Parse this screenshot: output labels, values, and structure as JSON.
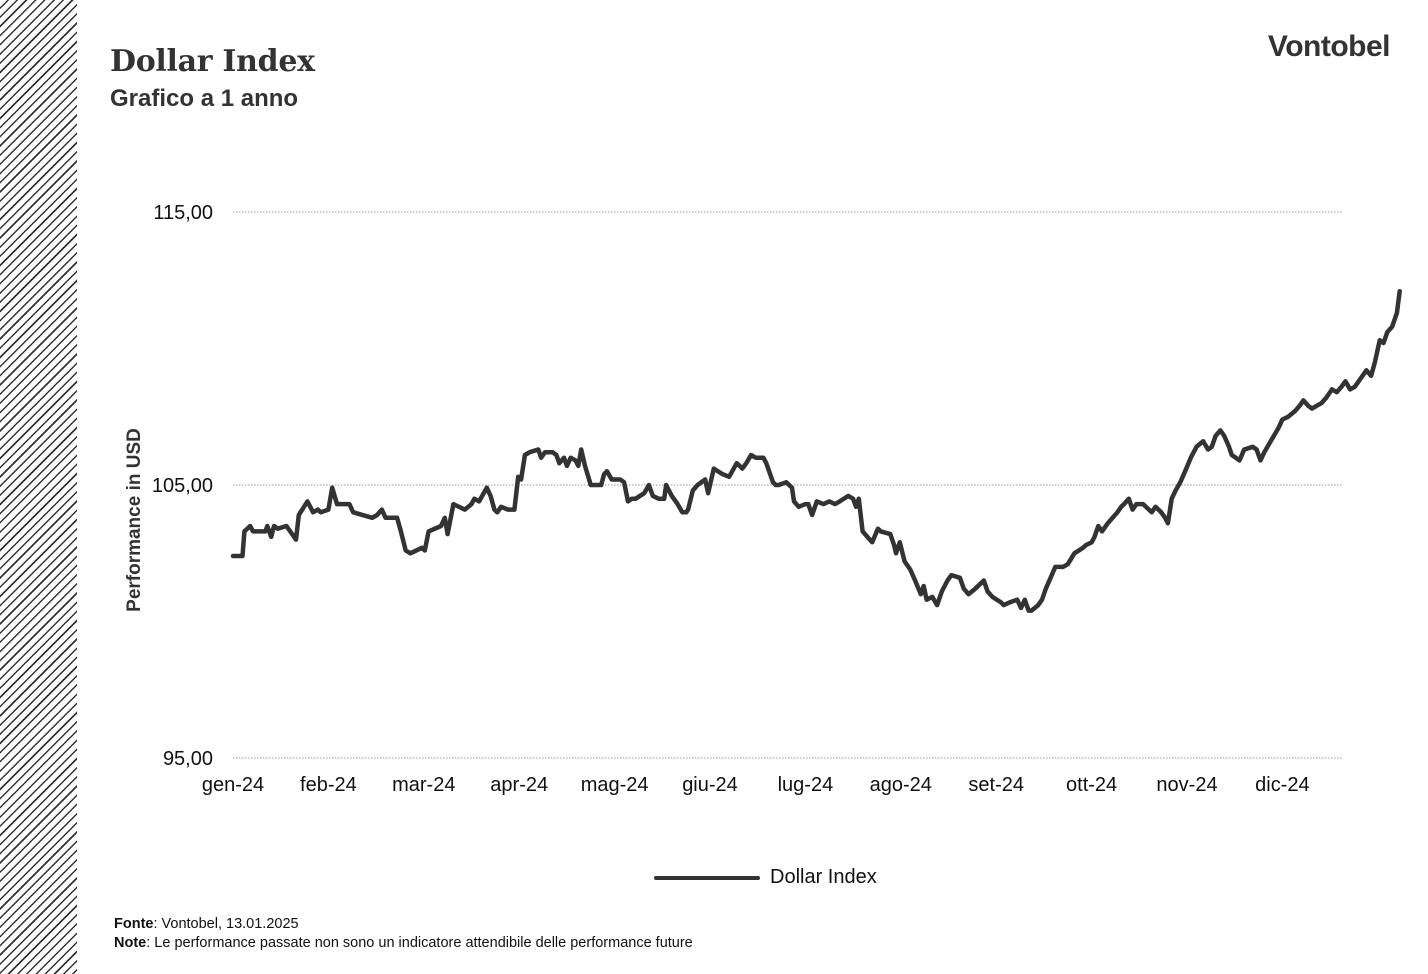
{
  "header": {
    "title": "Dollar Index",
    "subtitle": "Grafico a 1 anno",
    "brand": "Vontobel"
  },
  "footer": {
    "source_label": "Fonte",
    "source_text": ": Vontobel, 13.01.2025",
    "note_label": "Note",
    "note_text": ": Le performance passate non sono un indicatore attendibile delle performance future"
  },
  "colors": {
    "line": "#333333",
    "grid": "#9a9a9a",
    "text": "#111111"
  },
  "chart_data": {
    "type": "line",
    "title": "Dollar Index",
    "subtitle": "Grafico a 1 anno",
    "xlabel": "",
    "ylabel": "Performance in USD",
    "ylim": [
      95,
      115
    ],
    "yticks": [
      95,
      105,
      115
    ],
    "ytick_labels": [
      "95,00",
      "105,00",
      "115,00"
    ],
    "grid": true,
    "legend": "bottom-center",
    "xlim": [
      0,
      12.25
    ],
    "xticks": [
      0,
      1,
      2,
      3,
      4,
      5,
      6,
      7,
      8,
      9,
      10,
      11
    ],
    "xtick_labels": [
      "gen-24",
      "feb-24",
      "mar-24",
      "apr-24",
      "mag-24",
      "giu-24",
      "lug-24",
      "ago-24",
      "set-24",
      "ott-24",
      "nov-24",
      "dic-24"
    ],
    "series": [
      {
        "name": "Dollar Index",
        "points": [
          [
            0.0,
            102.4
          ],
          [
            0.1,
            102.4
          ],
          [
            0.12,
            103.3
          ],
          [
            0.18,
            103.5
          ],
          [
            0.21,
            103.3
          ],
          [
            0.34,
            103.3
          ],
          [
            0.36,
            103.5
          ],
          [
            0.4,
            103.1
          ],
          [
            0.43,
            103.5
          ],
          [
            0.47,
            103.4
          ],
          [
            0.56,
            103.5
          ],
          [
            0.66,
            103.0
          ],
          [
            0.69,
            103.9
          ],
          [
            0.78,
            104.4
          ],
          [
            0.84,
            104.0
          ],
          [
            0.89,
            104.1
          ],
          [
            0.92,
            104.0
          ],
          [
            1.0,
            104.1
          ],
          [
            1.04,
            104.9
          ],
          [
            1.09,
            104.3
          ],
          [
            1.22,
            104.3
          ],
          [
            1.26,
            104.0
          ],
          [
            1.46,
            103.8
          ],
          [
            1.51,
            103.9
          ],
          [
            1.56,
            104.1
          ],
          [
            1.6,
            103.8
          ],
          [
            1.72,
            103.8
          ],
          [
            1.76,
            103.3
          ],
          [
            1.81,
            102.6
          ],
          [
            1.86,
            102.5
          ],
          [
            1.98,
            102.7
          ],
          [
            2.01,
            102.6
          ],
          [
            2.05,
            103.3
          ],
          [
            2.18,
            103.5
          ],
          [
            2.22,
            103.8
          ],
          [
            2.25,
            103.2
          ],
          [
            2.31,
            104.3
          ],
          [
            2.43,
            104.1
          ],
          [
            2.5,
            104.3
          ],
          [
            2.53,
            104.5
          ],
          [
            2.58,
            104.4
          ],
          [
            2.66,
            104.9
          ],
          [
            2.7,
            104.6
          ],
          [
            2.74,
            104.1
          ],
          [
            2.77,
            104.0
          ],
          [
            2.81,
            104.2
          ],
          [
            2.88,
            104.1
          ],
          [
            2.95,
            104.1
          ],
          [
            2.99,
            105.3
          ],
          [
            3.02,
            105.2
          ],
          [
            3.06,
            106.1
          ],
          [
            3.11,
            106.2
          ],
          [
            3.2,
            106.3
          ],
          [
            3.23,
            106.0
          ],
          [
            3.27,
            106.2
          ],
          [
            3.35,
            106.2
          ],
          [
            3.39,
            106.1
          ],
          [
            3.42,
            105.8
          ],
          [
            3.47,
            106.0
          ],
          [
            3.5,
            105.7
          ],
          [
            3.54,
            106.0
          ],
          [
            3.59,
            105.9
          ],
          [
            3.62,
            105.7
          ],
          [
            3.65,
            106.3
          ],
          [
            3.69,
            105.7
          ],
          [
            3.75,
            105.0
          ],
          [
            3.86,
            105.0
          ],
          [
            3.89,
            105.4
          ],
          [
            3.92,
            105.5
          ],
          [
            3.97,
            105.2
          ],
          [
            4.06,
            105.2
          ],
          [
            4.1,
            105.1
          ],
          [
            4.14,
            104.4
          ],
          [
            4.18,
            104.5
          ],
          [
            4.22,
            104.5
          ],
          [
            4.31,
            104.7
          ],
          [
            4.36,
            105.0
          ],
          [
            4.4,
            104.6
          ],
          [
            4.46,
            104.5
          ],
          [
            4.52,
            104.5
          ],
          [
            4.54,
            105.0
          ],
          [
            4.6,
            104.6
          ],
          [
            4.66,
            104.3
          ],
          [
            4.71,
            104.0
          ],
          [
            4.75,
            104.0
          ],
          [
            4.77,
            104.1
          ],
          [
            4.82,
            104.8
          ],
          [
            4.87,
            105.0
          ],
          [
            4.95,
            105.2
          ],
          [
            4.98,
            104.7
          ],
          [
            5.04,
            105.6
          ],
          [
            5.13,
            105.4
          ],
          [
            5.2,
            105.3
          ],
          [
            5.28,
            105.8
          ],
          [
            5.31,
            105.7
          ],
          [
            5.34,
            105.6
          ],
          [
            5.38,
            105.8
          ],
          [
            5.43,
            106.1
          ],
          [
            5.48,
            106.0
          ],
          [
            5.56,
            106.0
          ],
          [
            5.59,
            105.8
          ],
          [
            5.66,
            105.1
          ],
          [
            5.69,
            105.0
          ],
          [
            5.72,
            105.0
          ],
          [
            5.8,
            105.1
          ],
          [
            5.86,
            104.9
          ],
          [
            5.88,
            104.4
          ],
          [
            5.93,
            104.2
          ],
          [
            6.0,
            104.3
          ],
          [
            6.03,
            104.3
          ],
          [
            6.07,
            103.9
          ],
          [
            6.12,
            104.4
          ],
          [
            6.19,
            104.3
          ],
          [
            6.25,
            104.4
          ],
          [
            6.31,
            104.3
          ],
          [
            6.36,
            104.4
          ],
          [
            6.45,
            104.6
          ],
          [
            6.5,
            104.5
          ],
          [
            6.53,
            104.2
          ],
          [
            6.56,
            104.5
          ],
          [
            6.6,
            103.3
          ],
          [
            6.7,
            102.9
          ],
          [
            6.76,
            103.4
          ],
          [
            6.79,
            103.3
          ],
          [
            6.89,
            103.2
          ],
          [
            6.93,
            102.8
          ],
          [
            6.95,
            102.5
          ],
          [
            6.99,
            102.9
          ],
          [
            7.04,
            102.2
          ],
          [
            7.1,
            101.9
          ],
          [
            7.15,
            101.5
          ],
          [
            7.21,
            101.0
          ],
          [
            7.24,
            101.3
          ],
          [
            7.27,
            100.8
          ],
          [
            7.33,
            100.9
          ],
          [
            7.38,
            100.6
          ],
          [
            7.43,
            101.1
          ],
          [
            7.49,
            101.5
          ],
          [
            7.53,
            101.7
          ],
          [
            7.62,
            101.6
          ],
          [
            7.66,
            101.2
          ],
          [
            7.71,
            101.0
          ],
          [
            7.78,
            101.2
          ],
          [
            7.87,
            101.5
          ],
          [
            7.91,
            101.1
          ],
          [
            7.96,
            100.9
          ],
          [
            8.05,
            100.7
          ],
          [
            8.08,
            100.6
          ],
          [
            8.14,
            100.7
          ],
          [
            8.22,
            100.8
          ],
          [
            8.26,
            100.5
          ],
          [
            8.3,
            100.8
          ],
          [
            8.34,
            100.4
          ],
          [
            8.37,
            100.4
          ],
          [
            8.44,
            100.6
          ],
          [
            8.48,
            100.8
          ],
          [
            8.52,
            101.2
          ],
          [
            8.57,
            101.6
          ],
          [
            8.62,
            102.0
          ],
          [
            8.7,
            102.0
          ],
          [
            8.75,
            102.1
          ],
          [
            8.82,
            102.5
          ],
          [
            8.91,
            102.7
          ],
          [
            8.94,
            102.8
          ],
          [
            9.0,
            102.9
          ],
          [
            9.03,
            103.1
          ],
          [
            9.07,
            103.5
          ],
          [
            9.11,
            103.3
          ],
          [
            9.17,
            103.6
          ],
          [
            9.22,
            103.8
          ],
          [
            9.27,
            104.0
          ],
          [
            9.31,
            104.2
          ],
          [
            9.34,
            104.3
          ],
          [
            9.39,
            104.5
          ],
          [
            9.43,
            104.1
          ],
          [
            9.47,
            104.3
          ],
          [
            9.54,
            104.3
          ],
          [
            9.63,
            104.0
          ],
          [
            9.67,
            104.2
          ],
          [
            9.73,
            104.0
          ],
          [
            9.77,
            103.8
          ],
          [
            9.8,
            103.6
          ],
          [
            9.84,
            104.5
          ],
          [
            9.88,
            104.8
          ],
          [
            9.93,
            105.1
          ],
          [
            9.98,
            105.5
          ],
          [
            10.04,
            106.0
          ],
          [
            10.1,
            106.4
          ],
          [
            10.17,
            106.6
          ],
          [
            10.22,
            106.3
          ],
          [
            10.26,
            106.4
          ],
          [
            10.3,
            106.8
          ],
          [
            10.35,
            107.0
          ],
          [
            10.39,
            106.8
          ],
          [
            10.44,
            106.4
          ],
          [
            10.47,
            106.1
          ],
          [
            10.51,
            106.0
          ],
          [
            10.55,
            105.9
          ],
          [
            10.6,
            106.3
          ],
          [
            10.69,
            106.4
          ],
          [
            10.73,
            106.3
          ],
          [
            10.77,
            105.9
          ],
          [
            10.81,
            106.2
          ],
          [
            10.86,
            106.5
          ],
          [
            10.91,
            106.8
          ],
          [
            10.96,
            107.1
          ],
          [
            11.0,
            107.4
          ],
          [
            11.06,
            107.5
          ],
          [
            11.13,
            107.7
          ],
          [
            11.18,
            107.9
          ],
          [
            11.22,
            108.1
          ],
          [
            11.27,
            107.9
          ],
          [
            11.31,
            107.8
          ],
          [
            11.36,
            107.9
          ],
          [
            11.41,
            108.0
          ],
          [
            11.46,
            108.2
          ],
          [
            11.52,
            108.5
          ],
          [
            11.57,
            108.4
          ],
          [
            11.62,
            108.6
          ],
          [
            11.66,
            108.8
          ],
          [
            11.71,
            108.5
          ],
          [
            11.76,
            108.6
          ],
          [
            11.82,
            108.9
          ],
          [
            11.88,
            109.2
          ],
          [
            11.93,
            109.0
          ],
          [
            11.97,
            109.5
          ],
          [
            12.02,
            110.3
          ],
          [
            12.06,
            110.2
          ],
          [
            12.1,
            110.6
          ],
          [
            12.15,
            110.8
          ],
          [
            12.2,
            111.3
          ],
          [
            12.23,
            112.1
          ]
        ]
      }
    ]
  }
}
